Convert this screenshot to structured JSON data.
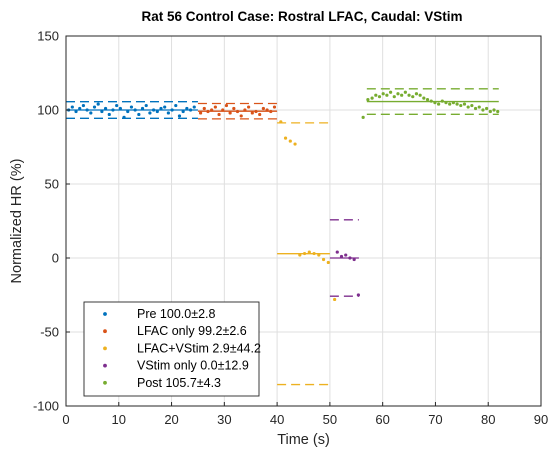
{
  "chart_data": {
    "type": "scatter",
    "title": "Rat 56 Control Case: Rostral LFAC,  Caudal: VStim",
    "xlabel": "Time (s)",
    "ylabel": "Normalized HR (%)",
    "xlim": [
      0,
      90
    ],
    "ylim": [
      -100,
      150
    ],
    "xticks": [
      0,
      10,
      20,
      30,
      40,
      50,
      60,
      70,
      80,
      90
    ],
    "yticks": [
      -100,
      -50,
      0,
      50,
      100,
      150
    ],
    "grid": true,
    "legend_position": "bottom-left",
    "series": [
      {
        "name": "Pre 100.0±2.8",
        "color": "#0072BD",
        "mean": 100.0,
        "sd_bounds": [
          94.4,
          105.6
        ],
        "line_range": [
          0,
          25
        ],
        "x": [
          0.5,
          1.2,
          1.9,
          2.6,
          3.3,
          4.0,
          4.7,
          5.4,
          6.1,
          6.8,
          7.5,
          8.2,
          8.9,
          9.6,
          10.3,
          11.0,
          11.7,
          12.4,
          13.1,
          13.8,
          14.5,
          15.2,
          15.9,
          16.6,
          17.3,
          18.0,
          18.7,
          19.4,
          20.1,
          20.8,
          21.5,
          22.2,
          22.9,
          23.6,
          24.3
        ],
        "y": [
          100,
          102,
          99,
          101,
          103,
          100,
          98,
          102,
          104,
          99,
          101,
          97,
          100,
          103,
          101,
          95,
          99,
          102,
          100,
          97,
          101,
          103,
          98,
          100,
          99,
          101,
          102,
          98,
          100,
          103,
          96,
          99,
          101,
          100,
          102
        ]
      },
      {
        "name": "LFAC only 99.2±2.6",
        "color": "#D95319",
        "mean": 99.2,
        "sd_bounds": [
          94.0,
          104.4
        ],
        "line_range": [
          25,
          40
        ],
        "x": [
          25.5,
          26.2,
          26.9,
          27.6,
          28.3,
          29.0,
          29.7,
          30.4,
          31.1,
          31.8,
          32.5,
          33.2,
          33.9,
          34.6,
          35.3,
          36.0,
          36.7,
          37.4,
          38.1,
          38.8,
          39.5
        ],
        "y": [
          98,
          101,
          99,
          100,
          102,
          97,
          100,
          103,
          98,
          101,
          99,
          96,
          100,
          102,
          98,
          99,
          97,
          101,
          100,
          99,
          102
        ]
      },
      {
        "name": "LFAC+VStim 2.9±44.2",
        "color": "#EDB120",
        "mean": 2.9,
        "sd_bounds": [
          -85.5,
          91.3
        ],
        "line_range": [
          40,
          50
        ],
        "x": [
          40.7,
          41.6,
          42.5,
          43.4,
          44.3,
          45.2,
          46.1,
          47.0,
          47.9,
          48.8,
          49.7,
          50.9
        ],
        "y": [
          92,
          81,
          79,
          77,
          2,
          3,
          4,
          3,
          2,
          -1,
          -3,
          -28
        ]
      },
      {
        "name": "VStim only 0.0±12.9",
        "color": "#7E2F8E",
        "mean": 0.0,
        "sd_bounds": [
          -25.8,
          25.8
        ],
        "line_range": [
          50,
          55.5
        ],
        "x": [
          51.4,
          52.2,
          53.0,
          53.8,
          54.6,
          55.4
        ],
        "y": [
          4,
          1,
          2,
          0,
          -1,
          -25
        ]
      },
      {
        "name": "Post 105.7±4.3",
        "color": "#77AC30",
        "mean": 105.7,
        "sd_bounds": [
          97.1,
          114.3
        ],
        "line_range": [
          57,
          82
        ],
        "x": [
          56.3,
          57.2,
          58.0,
          58.7,
          59.4,
          60.1,
          60.8,
          61.5,
          62.2,
          62.9,
          63.6,
          64.3,
          65.0,
          65.7,
          66.4,
          67.1,
          67.8,
          68.5,
          69.2,
          69.9,
          70.6,
          71.3,
          72.0,
          72.7,
          73.4,
          74.1,
          74.8,
          75.5,
          76.2,
          76.9,
          77.6,
          78.3,
          79.0,
          79.7,
          80.4,
          81.1,
          81.8
        ],
        "y": [
          95,
          107,
          108,
          110,
          109,
          111,
          110,
          112,
          109,
          111,
          110,
          112,
          110,
          109,
          111,
          110,
          108,
          107,
          106,
          105,
          104,
          106,
          105,
          104,
          105,
          104,
          103,
          104,
          102,
          103,
          101,
          102,
          100,
          101,
          99,
          100,
          99
        ]
      }
    ]
  }
}
